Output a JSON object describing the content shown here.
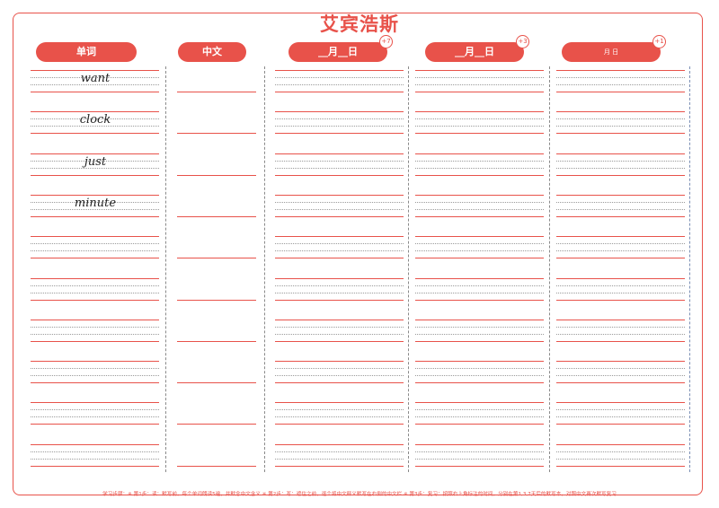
{
  "page": {
    "title": "艾宾浩斯",
    "footer": "学习步骤：※ 第1步：读：默写前，每个单词朗读5遍，并默念中文含义 ※ 第2步：写：遮住之前，逐个将中文释义默写在右侧的中文栏 ※ 第3步：复习：按照右上角标注的时间，分别在第1,3,7天后的默写本，对照中文再次默写复习"
  },
  "columns": [
    {
      "label": "单词",
      "badge": ""
    },
    {
      "label": "中文",
      "badge": ""
    },
    {
      "label": "__月__日",
      "badge": "+7"
    },
    {
      "label": "__月__日",
      "badge": "+3"
    },
    {
      "label": "月   日",
      "badge": "+1"
    }
  ],
  "words": [
    "want",
    "clock",
    "just",
    "minute",
    "",
    "",
    "",
    "",
    "",
    ""
  ],
  "colors": {
    "accent": "#e8524a",
    "dotted": "#9a9a9a"
  }
}
